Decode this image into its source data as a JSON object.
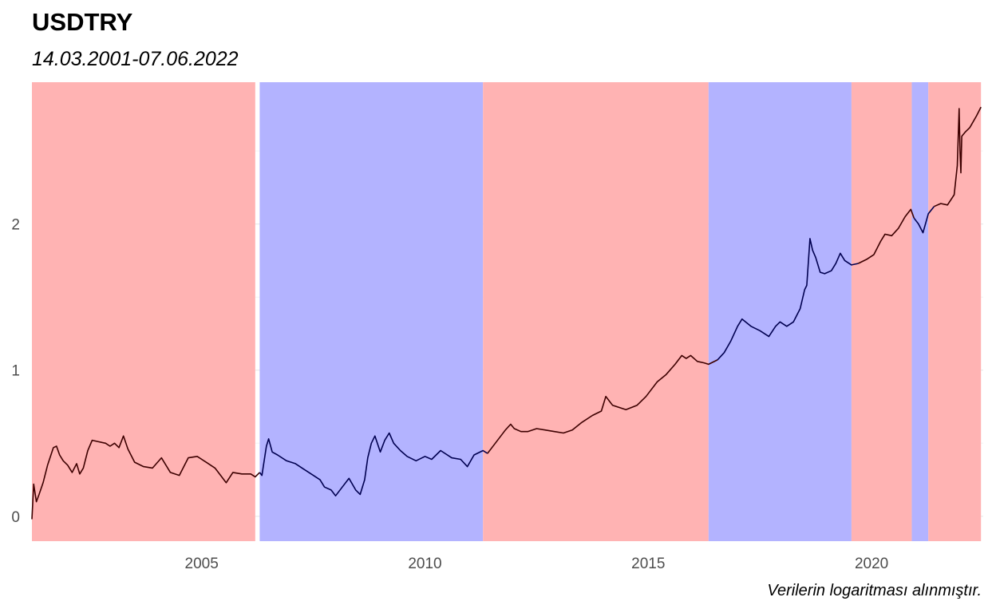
{
  "chart_data": {
    "type": "line",
    "title": "USDTRY",
    "subtitle": "14.03.2001-07.06.2022",
    "caption": "Verilerin logaritması alınmıştır.",
    "xlabel": "",
    "ylabel": "",
    "xlim": [
      2001.2,
      2022.5
    ],
    "ylim": [
      -0.17,
      2.97
    ],
    "x_ticks": [
      2005,
      2010,
      2015,
      2020
    ],
    "y_ticks": [
      0,
      1,
      2
    ],
    "grid": true,
    "colors": {
      "red_regime_fill": "#ffb1b1",
      "blue_regime_fill": "#b1b1ff",
      "red_regime_line": "#3d0000",
      "blue_regime_line": "#000050",
      "grid_major": "#ebebeb",
      "grid_minor": "#f4f4f4"
    },
    "regimes": [
      {
        "start": 2001.2,
        "end": 2006.2,
        "regime": "red"
      },
      {
        "start": 2006.3,
        "end": 2011.3,
        "regime": "blue"
      },
      {
        "start": 2011.3,
        "end": 2016.35,
        "regime": "red"
      },
      {
        "start": 2016.35,
        "end": 2019.55,
        "regime": "blue"
      },
      {
        "start": 2019.55,
        "end": 2020.9,
        "regime": "red"
      },
      {
        "start": 2020.9,
        "end": 2021.27,
        "regime": "blue"
      },
      {
        "start": 2021.27,
        "end": 2022.45,
        "regime": "red"
      }
    ],
    "series": [
      {
        "values": [
          [
            2001.2,
            -0.02
          ],
          [
            2001.24,
            0.22
          ],
          [
            2001.3,
            0.1
          ],
          [
            2001.36,
            0.15
          ],
          [
            2001.45,
            0.23
          ],
          [
            2001.55,
            0.35
          ],
          [
            2001.68,
            0.47
          ],
          [
            2001.75,
            0.48
          ],
          [
            2001.82,
            0.42
          ],
          [
            2001.9,
            0.38
          ],
          [
            2002.0,
            0.35
          ],
          [
            2002.1,
            0.3
          ],
          [
            2002.2,
            0.36
          ],
          [
            2002.27,
            0.29
          ],
          [
            2002.35,
            0.33
          ],
          [
            2002.45,
            0.45
          ],
          [
            2002.55,
            0.52
          ],
          [
            2002.7,
            0.51
          ],
          [
            2002.85,
            0.5
          ],
          [
            2002.95,
            0.48
          ],
          [
            2003.05,
            0.5
          ],
          [
            2003.15,
            0.47
          ],
          [
            2003.25,
            0.55
          ],
          [
            2003.35,
            0.46
          ],
          [
            2003.5,
            0.37
          ],
          [
            2003.7,
            0.34
          ],
          [
            2003.9,
            0.33
          ],
          [
            2004.1,
            0.4
          ],
          [
            2004.3,
            0.3
          ],
          [
            2004.5,
            0.28
          ],
          [
            2004.7,
            0.4
          ],
          [
            2004.9,
            0.41
          ],
          [
            2005.1,
            0.37
          ],
          [
            2005.3,
            0.33
          ],
          [
            2005.45,
            0.27
          ],
          [
            2005.55,
            0.23
          ],
          [
            2005.7,
            0.3
          ],
          [
            2005.9,
            0.29
          ],
          [
            2006.1,
            0.29
          ],
          [
            2006.2,
            0.27
          ],
          [
            2006.3,
            0.3
          ],
          [
            2006.35,
            0.28
          ],
          [
            2006.45,
            0.48
          ],
          [
            2006.5,
            0.53
          ],
          [
            2006.58,
            0.44
          ],
          [
            2006.7,
            0.42
          ],
          [
            2006.9,
            0.38
          ],
          [
            2007.1,
            0.36
          ],
          [
            2007.3,
            0.32
          ],
          [
            2007.5,
            0.28
          ],
          [
            2007.65,
            0.25
          ],
          [
            2007.75,
            0.2
          ],
          [
            2007.9,
            0.18
          ],
          [
            2008.0,
            0.14
          ],
          [
            2008.15,
            0.2
          ],
          [
            2008.3,
            0.26
          ],
          [
            2008.45,
            0.18
          ],
          [
            2008.55,
            0.15
          ],
          [
            2008.65,
            0.25
          ],
          [
            2008.72,
            0.4
          ],
          [
            2008.8,
            0.5
          ],
          [
            2008.88,
            0.55
          ],
          [
            2009.0,
            0.44
          ],
          [
            2009.1,
            0.52
          ],
          [
            2009.2,
            0.57
          ],
          [
            2009.3,
            0.5
          ],
          [
            2009.45,
            0.45
          ],
          [
            2009.6,
            0.41
          ],
          [
            2009.8,
            0.38
          ],
          [
            2010.0,
            0.41
          ],
          [
            2010.15,
            0.39
          ],
          [
            2010.35,
            0.45
          ],
          [
            2010.6,
            0.4
          ],
          [
            2010.8,
            0.39
          ],
          [
            2010.95,
            0.34
          ],
          [
            2011.1,
            0.42
          ],
          [
            2011.3,
            0.45
          ],
          [
            2011.4,
            0.43
          ],
          [
            2011.5,
            0.47
          ],
          [
            2011.65,
            0.53
          ],
          [
            2011.8,
            0.59
          ],
          [
            2011.92,
            0.63
          ],
          [
            2012.0,
            0.6
          ],
          [
            2012.15,
            0.58
          ],
          [
            2012.3,
            0.58
          ],
          [
            2012.5,
            0.6
          ],
          [
            2012.7,
            0.59
          ],
          [
            2012.9,
            0.58
          ],
          [
            2013.1,
            0.57
          ],
          [
            2013.3,
            0.59
          ],
          [
            2013.5,
            0.64
          ],
          [
            2013.75,
            0.69
          ],
          [
            2013.95,
            0.72
          ],
          [
            2014.05,
            0.82
          ],
          [
            2014.2,
            0.76
          ],
          [
            2014.5,
            0.73
          ],
          [
            2014.75,
            0.76
          ],
          [
            2014.95,
            0.82
          ],
          [
            2015.2,
            0.92
          ],
          [
            2015.4,
            0.97
          ],
          [
            2015.6,
            1.04
          ],
          [
            2015.75,
            1.1
          ],
          [
            2015.85,
            1.08
          ],
          [
            2015.95,
            1.1
          ],
          [
            2016.1,
            1.06
          ],
          [
            2016.25,
            1.05
          ],
          [
            2016.35,
            1.04
          ],
          [
            2016.55,
            1.07
          ],
          [
            2016.7,
            1.12
          ],
          [
            2016.85,
            1.2
          ],
          [
            2017.0,
            1.3
          ],
          [
            2017.1,
            1.35
          ],
          [
            2017.3,
            1.3
          ],
          [
            2017.5,
            1.27
          ],
          [
            2017.7,
            1.23
          ],
          [
            2017.85,
            1.3
          ],
          [
            2017.95,
            1.33
          ],
          [
            2018.1,
            1.3
          ],
          [
            2018.25,
            1.33
          ],
          [
            2018.4,
            1.42
          ],
          [
            2018.5,
            1.55
          ],
          [
            2018.55,
            1.58
          ],
          [
            2018.62,
            1.9
          ],
          [
            2018.68,
            1.82
          ],
          [
            2018.75,
            1.77
          ],
          [
            2018.85,
            1.67
          ],
          [
            2018.95,
            1.66
          ],
          [
            2019.1,
            1.68
          ],
          [
            2019.2,
            1.73
          ],
          [
            2019.3,
            1.8
          ],
          [
            2019.4,
            1.75
          ],
          [
            2019.55,
            1.72
          ],
          [
            2019.7,
            1.73
          ],
          [
            2019.9,
            1.76
          ],
          [
            2020.05,
            1.79
          ],
          [
            2020.2,
            1.88
          ],
          [
            2020.3,
            1.93
          ],
          [
            2020.45,
            1.92
          ],
          [
            2020.6,
            1.97
          ],
          [
            2020.75,
            2.05
          ],
          [
            2020.88,
            2.1
          ],
          [
            2020.95,
            2.04
          ],
          [
            2021.05,
            2.0
          ],
          [
            2021.15,
            1.94
          ],
          [
            2021.27,
            2.07
          ],
          [
            2021.4,
            2.12
          ],
          [
            2021.55,
            2.14
          ],
          [
            2021.7,
            2.13
          ],
          [
            2021.85,
            2.2
          ],
          [
            2021.92,
            2.4
          ],
          [
            2021.96,
            2.79
          ],
          [
            2021.98,
            2.5
          ],
          [
            2022.0,
            2.35
          ],
          [
            2022.02,
            2.6
          ],
          [
            2022.1,
            2.63
          ],
          [
            2022.2,
            2.66
          ],
          [
            2022.35,
            2.74
          ],
          [
            2022.45,
            2.8
          ]
        ]
      }
    ]
  }
}
